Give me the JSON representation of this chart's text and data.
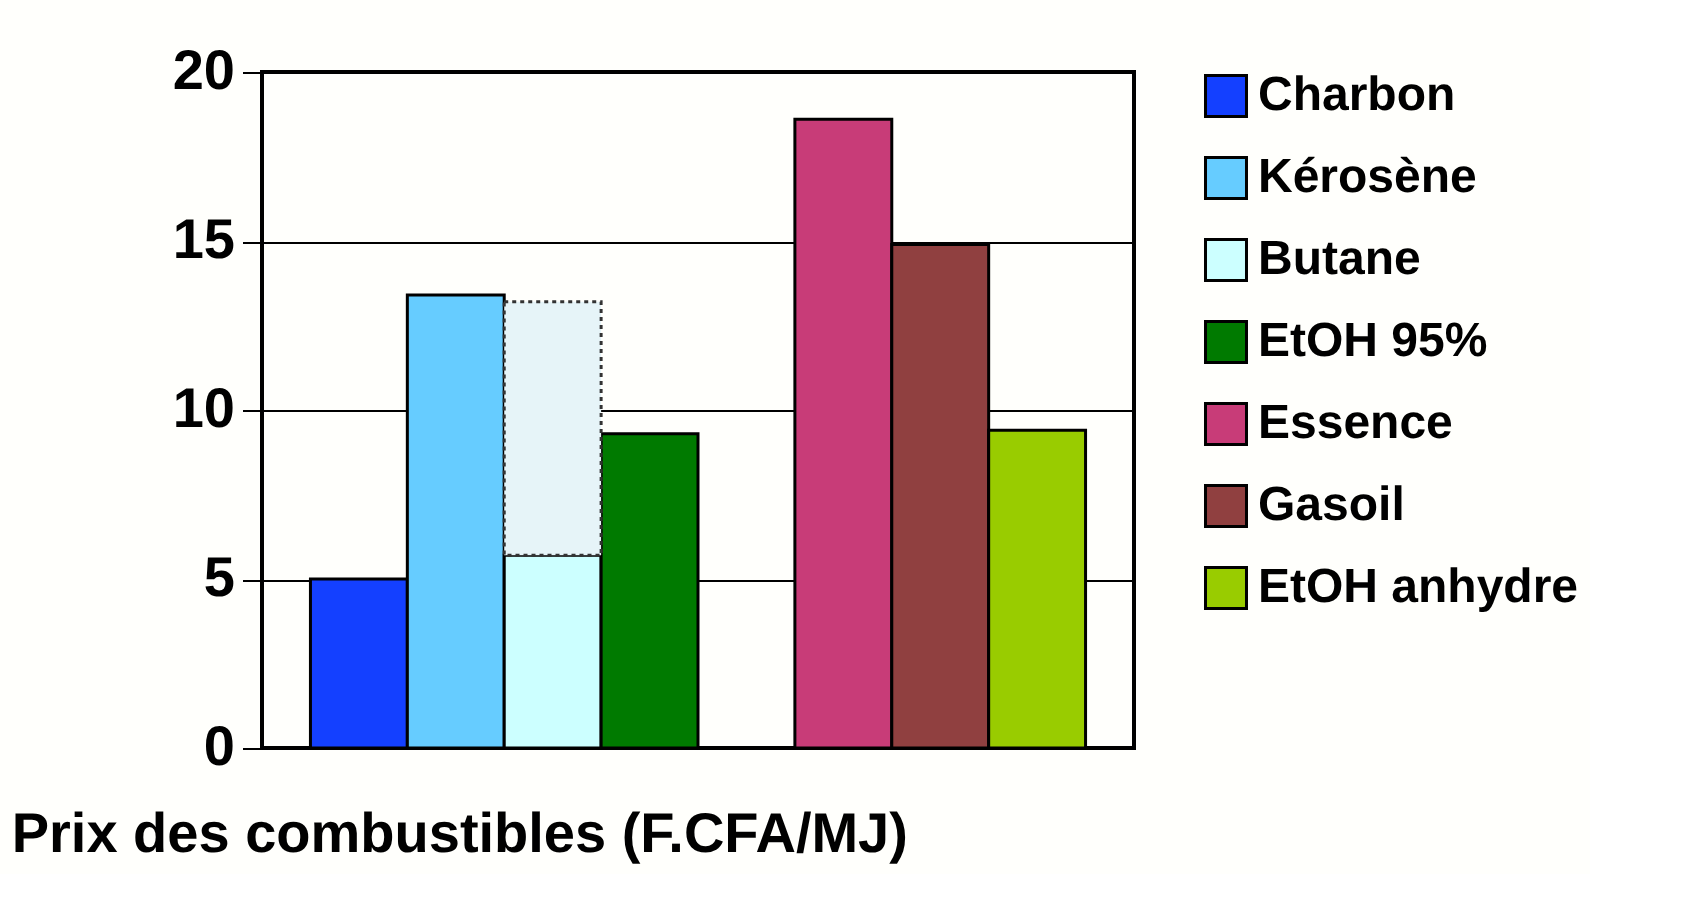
{
  "chart_data": {
    "type": "bar",
    "title": "Prix des combustibles (F.CFA/MJ)",
    "categories": [
      null,
      null,
      null,
      null,
      null,
      null,
      null,
      null
    ],
    "stacked": true,
    "series": [
      {
        "name": "Charbon",
        "color": "#1440ff",
        "values": [
          5.0,
          null,
          null,
          null,
          null,
          null,
          null,
          null
        ]
      },
      {
        "name": "Kérosène",
        "color": "#66ccff",
        "values": [
          null,
          13.4,
          null,
          null,
          null,
          null,
          null,
          null
        ]
      },
      {
        "name": "Butane",
        "color": "#ccffff",
        "values": [
          null,
          null,
          5.7,
          null,
          null,
          null,
          null,
          null
        ]
      },
      {
        "color": "#e6f4f8",
        "line_style": "dotted",
        "values": [
          null,
          null,
          7.5,
          null,
          null,
          null,
          null,
          null
        ]
      },
      {
        "name": "EtOH 95%",
        "color": "#007a00",
        "values": [
          null,
          null,
          null,
          9.3,
          null,
          null,
          null,
          null
        ]
      },
      {
        "name": "Essence",
        "color": "#c83c78",
        "values": [
          null,
          null,
          null,
          null,
          null,
          18.6,
          null,
          null
        ]
      },
      {
        "name": "Gasoil",
        "color": "#904040",
        "values": [
          null,
          null,
          null,
          null,
          null,
          null,
          14.9,
          null
        ]
      },
      {
        "name": "EtOH anhydre",
        "color": "#99cc00",
        "values": [
          null,
          null,
          null,
          null,
          null,
          null,
          null,
          9.4
        ]
      }
    ],
    "ylim": [
      0,
      20
    ],
    "yticks": [
      0,
      5,
      10,
      15,
      20
    ],
    "grid": "y",
    "legend": "right"
  }
}
